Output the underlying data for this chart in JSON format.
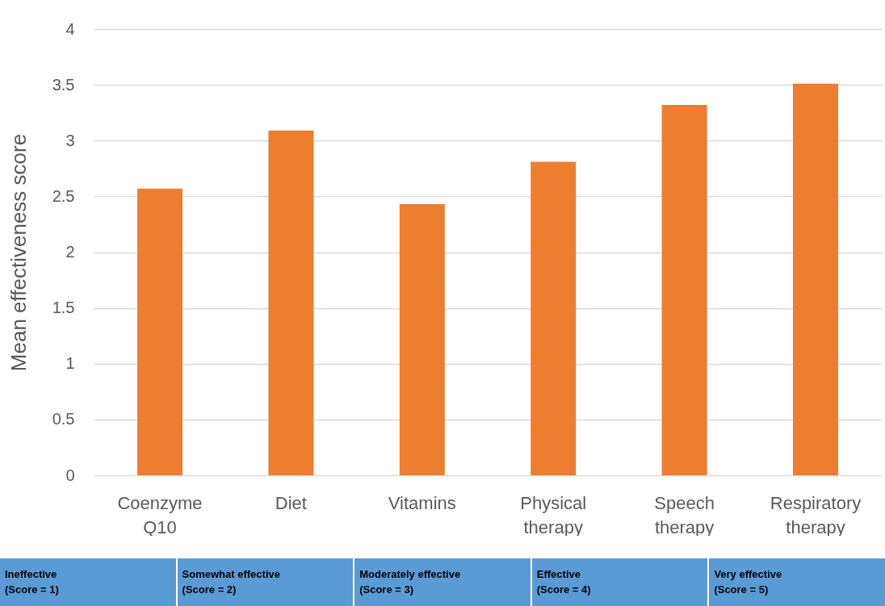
{
  "chart_data": {
    "type": "bar",
    "ylabel": "Mean effectiveness score",
    "categories": [
      "Coenzyme Q10",
      "Diet",
      "Vitamins",
      "Physical therapy",
      "Speech therapy",
      "Respiratory therapy"
    ],
    "values": [
      2.57,
      3.09,
      2.43,
      2.81,
      3.32,
      3.51
    ],
    "color": "#ed7d31",
    "ylim": [
      0,
      4
    ],
    "yticks": [
      0,
      0.5,
      1,
      1.5,
      2,
      2.5,
      3,
      3.5,
      4
    ],
    "grid": "y",
    "annotations": [
      "Ineffective\n(Score = 1)",
      "Somewhat effective\n(Score = 2)",
      "Moderately effective\n(Score = 3)",
      "Effective\n(Score = 4)",
      "Very effective\n(Score = 5)"
    ]
  }
}
